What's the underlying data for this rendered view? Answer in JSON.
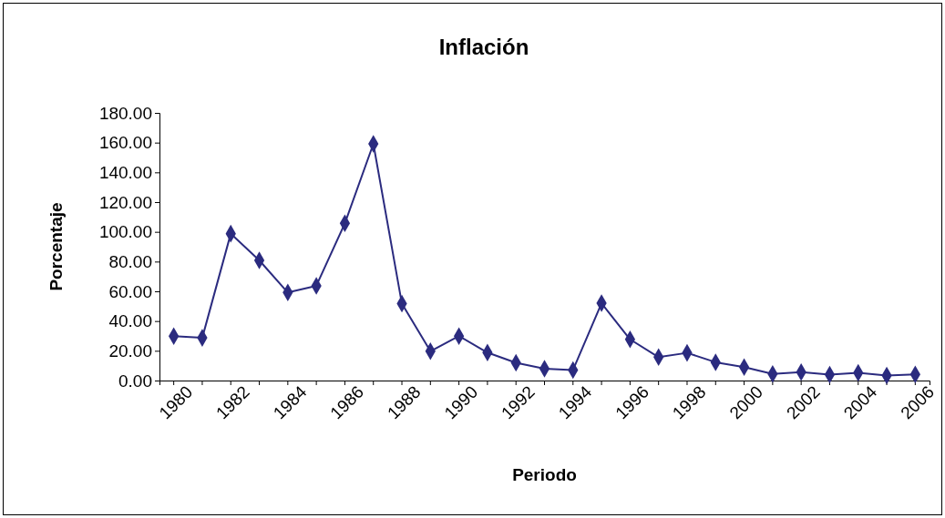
{
  "chart_data": {
    "type": "line",
    "title": "Inflación",
    "xlabel": "Periodo",
    "ylabel": "Porcentaje",
    "categories": [
      "1980",
      null,
      "1982",
      null,
      "1984",
      null,
      "1986",
      null,
      "1988",
      null,
      "1990",
      null,
      "1992",
      null,
      "1994",
      null,
      "1996",
      null,
      "1998",
      null,
      "2000",
      null,
      "2002",
      null,
      "2004",
      null,
      "2006"
    ],
    "series": [
      {
        "color": "#2b2b7f",
        "values": [
          29.8,
          28.7,
          98.8,
          80.8,
          59.2,
          63.7,
          105.7,
          159.2,
          51.7,
          19.7,
          29.9,
          18.8,
          11.9,
          8.0,
          7.1,
          52.0,
          27.7,
          15.7,
          18.6,
          12.3,
          9.0,
          4.4,
          5.7,
          4.0,
          5.2,
          3.3,
          4.1
        ]
      }
    ],
    "ylim": [
      0,
      180
    ],
    "yticks": [
      {
        "value": 0,
        "label": "0.00"
      },
      {
        "value": 20,
        "label": "20.00"
      },
      {
        "value": 40,
        "label": "40.00"
      },
      {
        "value": 60,
        "label": "60.00"
      },
      {
        "value": 80,
        "label": "80.00"
      },
      {
        "value": 100,
        "label": "100.00"
      },
      {
        "value": 120,
        "label": "120.00"
      },
      {
        "value": 140,
        "label": "140.00"
      },
      {
        "value": 160,
        "label": "160.00"
      },
      {
        "value": 180,
        "label": "180.00"
      }
    ],
    "marker": "diamond",
    "line_style": "solid",
    "grid": false
  }
}
